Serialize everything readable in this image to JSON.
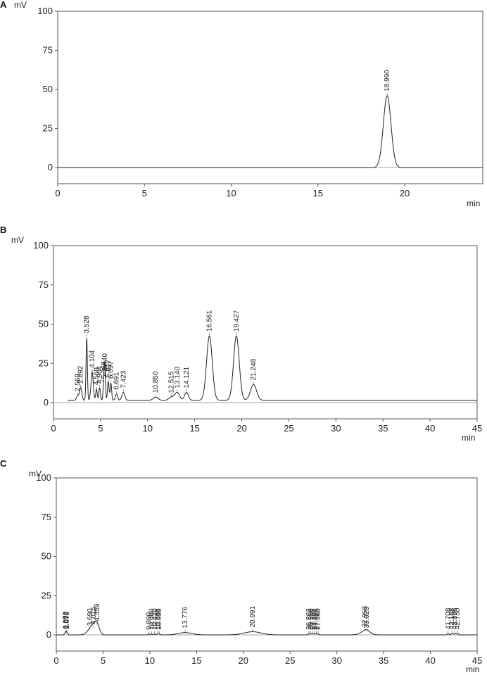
{
  "chart_data": [
    {
      "type": "line",
      "panel_label": "A",
      "y_unit": "mV",
      "x_unit": "min",
      "xlim": [
        0,
        24.5
      ],
      "ylim": [
        -10,
        100
      ],
      "x_ticks": [
        0,
        5,
        10,
        15,
        20
      ],
      "x_tick_labels": [
        "0",
        "5",
        "10",
        "15",
        "20"
      ],
      "y_ticks": [
        0,
        25,
        50,
        75,
        100
      ],
      "y_tick_labels": [
        "0",
        "25",
        "50",
        "75",
        "100"
      ],
      "trace_start": 0,
      "trace_end": 24.5,
      "baseline": 0,
      "peaks": [
        {
          "rt": 18.99,
          "label": "18.990",
          "height": 46,
          "width": 0.22
        }
      ]
    },
    {
      "type": "line",
      "panel_label": "B",
      "y_unit": "mV",
      "x_unit": "min",
      "xlim": [
        0,
        45
      ],
      "ylim": [
        -10,
        100
      ],
      "x_ticks": [
        0,
        5,
        10,
        15,
        20,
        25,
        30,
        35,
        40,
        45
      ],
      "x_tick_labels": [
        "0",
        "5",
        "10",
        "15",
        "20",
        "25",
        "30",
        "35",
        "40",
        "45"
      ],
      "y_ticks": [
        0,
        25,
        50,
        75,
        100
      ],
      "y_tick_labels": [
        "0",
        "25",
        "50",
        "75",
        "100"
      ],
      "trace_start": 1.5,
      "trace_end": 45,
      "baseline": 1.5,
      "peaks": [
        {
          "rt": 2.569,
          "label": "2.569",
          "height": 3,
          "width": 0.12
        },
        {
          "rt": 2.892,
          "label": "2.892",
          "height": 8,
          "width": 0.12
        },
        {
          "rt": 3.528,
          "label": "3.528",
          "height": 40,
          "width": 0.07
        },
        {
          "rt": 4.104,
          "label": "4.104",
          "height": 18,
          "width": 0.12
        },
        {
          "rt": 4.569,
          "label": "4.569",
          "height": 7,
          "width": 0.08
        },
        {
          "rt": 4.904,
          "label": "4.904",
          "height": 8,
          "width": 0.08
        },
        {
          "rt": 5.365,
          "label": "5.365",
          "height": 11,
          "width": 0.08
        },
        {
          "rt": 5.44,
          "label": "5.440",
          "height": 16,
          "width": 0.08
        },
        {
          "rt": 5.817,
          "label": "5.817",
          "height": 12,
          "width": 0.08
        },
        {
          "rt": 6.097,
          "label": "6.097",
          "height": 11,
          "width": 0.08
        },
        {
          "rt": 6.691,
          "label": "6.691",
          "height": 4,
          "width": 0.12
        },
        {
          "rt": 7.423,
          "label": "7.423",
          "height": 5,
          "width": 0.15
        },
        {
          "rt": 10.85,
          "label": "10.850",
          "height": 2,
          "width": 0.25
        },
        {
          "rt": 12.515,
          "label": "12.515",
          "height": 2,
          "width": 0.25
        },
        {
          "rt": 13.14,
          "label": "13.140",
          "height": 5,
          "width": 0.25
        },
        {
          "rt": 14.121,
          "label": "14.121",
          "height": 5,
          "width": 0.2
        },
        {
          "rt": 16.561,
          "label": "16.561",
          "height": 41,
          "width": 0.3
        },
        {
          "rt": 19.427,
          "label": "19.427",
          "height": 41,
          "width": 0.3
        },
        {
          "rt": 21.248,
          "label": "21.248",
          "height": 10,
          "width": 0.32
        }
      ]
    },
    {
      "type": "line",
      "panel_label": "C",
      "y_unit": "mV",
      "x_unit": "min",
      "xlim": [
        0,
        45
      ],
      "ylim": [
        -10,
        100
      ],
      "x_ticks": [
        0,
        5,
        10,
        15,
        20,
        25,
        30,
        35,
        40,
        45
      ],
      "x_tick_labels": [
        "0",
        "5",
        "10",
        "15",
        "20",
        "25",
        "30",
        "35",
        "40",
        "45"
      ],
      "y_ticks": [
        0,
        25,
        50,
        75,
        100
      ],
      "y_tick_labels": [
        "0",
        "25",
        "50",
        "75",
        "100"
      ],
      "trace_start": 0,
      "trace_end": 45,
      "baseline": 0,
      "peaks": [
        {
          "rt": 1.0,
          "label": "0.977",
          "height": 1,
          "width": 0.1
        },
        {
          "rt": 1.06,
          "label": "1.050",
          "height": 1,
          "width": 0.1
        },
        {
          "rt": 1.12,
          "label": "1.070",
          "height": 1,
          "width": 0.1
        },
        {
          "rt": 3.6,
          "label": "3.690",
          "height": 3,
          "width": 0.35
        },
        {
          "rt": 4.0,
          "label": "4.015",
          "height": 4,
          "width": 0.3
        },
        {
          "rt": 4.359,
          "label": "4.359",
          "height": 6,
          "width": 0.25
        },
        {
          "rt": 9.9,
          "label": "9.890",
          "height": 0.5,
          "width": 0.1
        },
        {
          "rt": 10.2,
          "label": "10.000",
          "height": 0.5,
          "width": 0.1
        },
        {
          "rt": 10.5,
          "label": "10.420",
          "height": 0.5,
          "width": 0.1
        },
        {
          "rt": 10.85,
          "label": "10.888",
          "height": 0.5,
          "width": 0.1
        },
        {
          "rt": 11.0,
          "label": "10.935",
          "height": 0.5,
          "width": 0.1
        },
        {
          "rt": 13.776,
          "label": "13.776",
          "height": 1.5,
          "width": 0.7
        },
        {
          "rt": 20.991,
          "label": "20.991",
          "height": 2,
          "width": 0.9
        },
        {
          "rt": 27.0,
          "label": "26.862",
          "height": 0.5,
          "width": 0.1
        },
        {
          "rt": 27.2,
          "label": "26.950",
          "height": 0.5,
          "width": 0.1
        },
        {
          "rt": 27.4,
          "label": "27.158",
          "height": 0.5,
          "width": 0.1
        },
        {
          "rt": 27.6,
          "label": "27.381",
          "height": 0.5,
          "width": 0.1
        },
        {
          "rt": 27.8,
          "label": "27.526",
          "height": 0.5,
          "width": 0.1
        },
        {
          "rt": 28.0,
          "label": "27.960",
          "height": 0.5,
          "width": 0.1
        },
        {
          "rt": 33.0,
          "label": "32.958",
          "height": 2,
          "width": 0.5
        },
        {
          "rt": 33.2,
          "label": "33.023",
          "height": 1.5,
          "width": 0.3
        },
        {
          "rt": 41.9,
          "label": "41.708",
          "height": 0.8,
          "width": 0.1
        },
        {
          "rt": 42.3,
          "label": "42.168",
          "height": 0.8,
          "width": 0.1
        },
        {
          "rt": 42.6,
          "label": "42.396",
          "height": 0.8,
          "width": 0.1
        },
        {
          "rt": 42.9,
          "label": "42.750",
          "height": 0.8,
          "width": 0.1
        }
      ]
    }
  ]
}
